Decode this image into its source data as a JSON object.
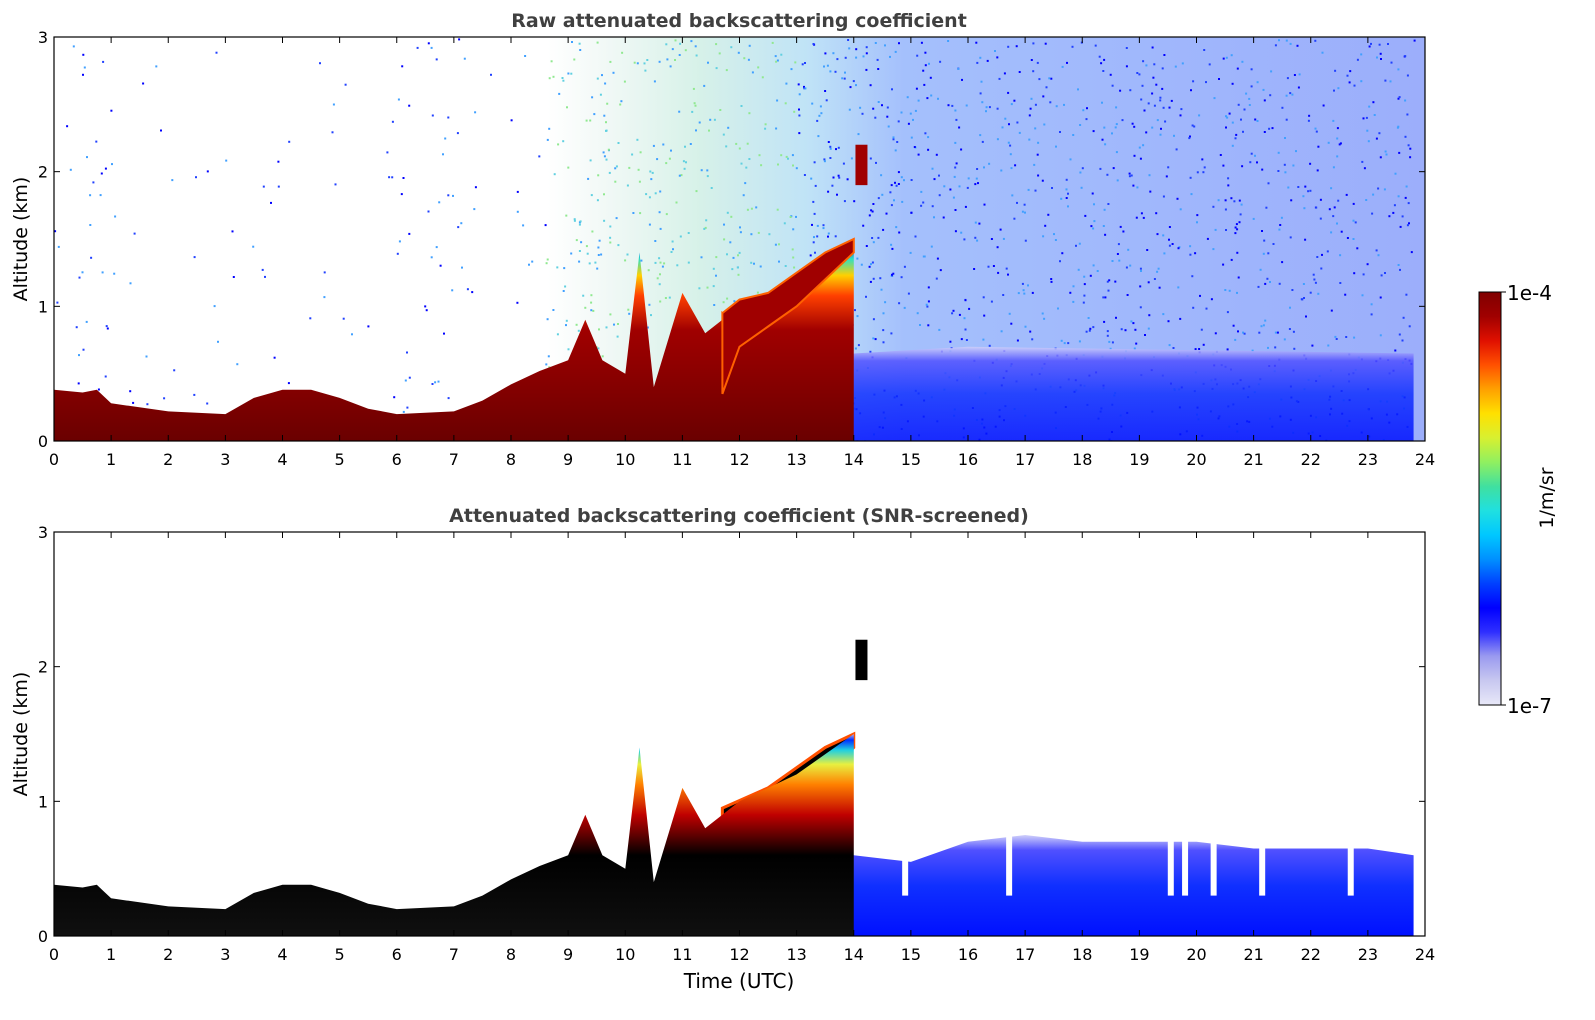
{
  "chart_data": [
    {
      "type": "heatmap",
      "title": "Raw attenuated backscattering coefficient",
      "xlabel": "",
      "ylabel": "Altitude (km)",
      "xlim": [
        0,
        24
      ],
      "ylim": [
        0,
        3
      ],
      "xticks": [
        "0",
        "1",
        "2",
        "3",
        "4",
        "5",
        "6",
        "7",
        "8",
        "9",
        "10",
        "11",
        "12",
        "13",
        "14",
        "15",
        "16",
        "17",
        "18",
        "19",
        "20",
        "21",
        "22",
        "23",
        "24"
      ],
      "yticks": [
        "0",
        "1",
        "2",
        "3"
      ],
      "layer_top_km": [
        [
          0,
          0.38
        ],
        [
          0.5,
          0.36
        ],
        [
          0.75,
          0.38
        ],
        [
          1,
          0.28
        ],
        [
          2,
          0.22
        ],
        [
          3,
          0.2
        ],
        [
          3.5,
          0.32
        ],
        [
          4,
          0.38
        ],
        [
          4.5,
          0.38
        ],
        [
          5,
          0.32
        ],
        [
          5.5,
          0.24
        ],
        [
          6,
          0.2
        ],
        [
          7,
          0.22
        ],
        [
          7.5,
          0.3
        ],
        [
          8,
          0.42
        ],
        [
          8.5,
          0.52
        ],
        [
          9,
          0.6
        ],
        [
          9.3,
          0.9
        ],
        [
          9.6,
          0.6
        ],
        [
          10,
          0.5
        ],
        [
          10.25,
          1.4
        ],
        [
          10.5,
          0.4
        ],
        [
          11,
          1.1
        ],
        [
          11.4,
          0.8
        ],
        [
          11.7,
          0.9
        ],
        [
          12,
          1.0
        ],
        [
          13,
          1.2
        ],
        [
          14,
          1.5
        ]
      ],
      "elevated_layer_km": [
        [
          11.7,
          0.35,
          0.95
        ],
        [
          12,
          0.7,
          1.05
        ],
        [
          12.5,
          0.85,
          1.1
        ],
        [
          13,
          1.0,
          1.25
        ],
        [
          13.5,
          1.2,
          1.4
        ],
        [
          14,
          1.4,
          1.5
        ]
      ],
      "cloud_patch_km": [
        14.1,
        1.9,
        2.2
      ],
      "colorbar": {
        "min_label": "1e-7",
        "max_label": "1e-4",
        "label": "1/m/sr",
        "scale": "log"
      }
    },
    {
      "type": "heatmap",
      "title": "Attenuated backscattering coefficient (SNR-screened)",
      "xlabel": "Time (UTC)",
      "ylabel": "Altitude (km)",
      "xlim": [
        0,
        24
      ],
      "ylim": [
        0,
        3
      ],
      "xticks": [
        "0",
        "1",
        "2",
        "3",
        "4",
        "5",
        "6",
        "7",
        "8",
        "9",
        "10",
        "11",
        "12",
        "13",
        "14",
        "15",
        "16",
        "17",
        "18",
        "19",
        "20",
        "21",
        "22",
        "23",
        "24"
      ],
      "yticks": [
        "0",
        "1",
        "2",
        "3"
      ],
      "layer_top_km": [
        [
          0,
          0.38
        ],
        [
          0.5,
          0.36
        ],
        [
          0.75,
          0.38
        ],
        [
          1,
          0.28
        ],
        [
          2,
          0.22
        ],
        [
          3,
          0.2
        ],
        [
          3.5,
          0.32
        ],
        [
          4,
          0.38
        ],
        [
          4.5,
          0.38
        ],
        [
          5,
          0.32
        ],
        [
          5.5,
          0.24
        ],
        [
          6,
          0.2
        ],
        [
          7,
          0.22
        ],
        [
          7.5,
          0.3
        ],
        [
          8,
          0.42
        ],
        [
          8.5,
          0.52
        ],
        [
          9,
          0.6
        ],
        [
          9.3,
          0.9
        ],
        [
          9.6,
          0.6
        ],
        [
          10,
          0.5
        ],
        [
          10.25,
          1.4
        ],
        [
          10.5,
          0.4
        ],
        [
          11,
          1.1
        ],
        [
          11.4,
          0.8
        ],
        [
          11.7,
          0.9
        ],
        [
          12,
          1.0
        ],
        [
          13,
          1.2
        ],
        [
          14,
          1.5
        ]
      ],
      "blue_region_top_km": [
        [
          12,
          0.55
        ],
        [
          13,
          0.65
        ],
        [
          14,
          0.6
        ],
        [
          15,
          0.55
        ],
        [
          16,
          0.7
        ],
        [
          17,
          0.75
        ],
        [
          18,
          0.7
        ],
        [
          19,
          0.7
        ],
        [
          20,
          0.7
        ],
        [
          21,
          0.65
        ],
        [
          22,
          0.65
        ],
        [
          23,
          0.65
        ],
        [
          23.8,
          0.6
        ]
      ],
      "gaps_hours": [
        14.9,
        16.72,
        19.55,
        19.8,
        20.3,
        21.15,
        22.7
      ],
      "cloud_patch_km": [
        14.1,
        1.9,
        2.2
      ],
      "colorbar": {
        "min_label": "1e-7",
        "max_label": "1e-4",
        "label": "1/m/sr",
        "scale": "log"
      }
    }
  ],
  "colorbar": {
    "max_label": "1e-4",
    "min_label": "1e-7",
    "unit_label": "1/m/sr",
    "colors": [
      "#e8e8f8",
      "#c8c8f0",
      "#9a9af0",
      "#3030ff",
      "#0000ff",
      "#0040ff",
      "#0090ff",
      "#00c8ff",
      "#20e0e0",
      "#40e0a0",
      "#90f060",
      "#d8f030",
      "#ffe000",
      "#ffa000",
      "#ff5000",
      "#e01000",
      "#a00000",
      "#800000"
    ]
  }
}
